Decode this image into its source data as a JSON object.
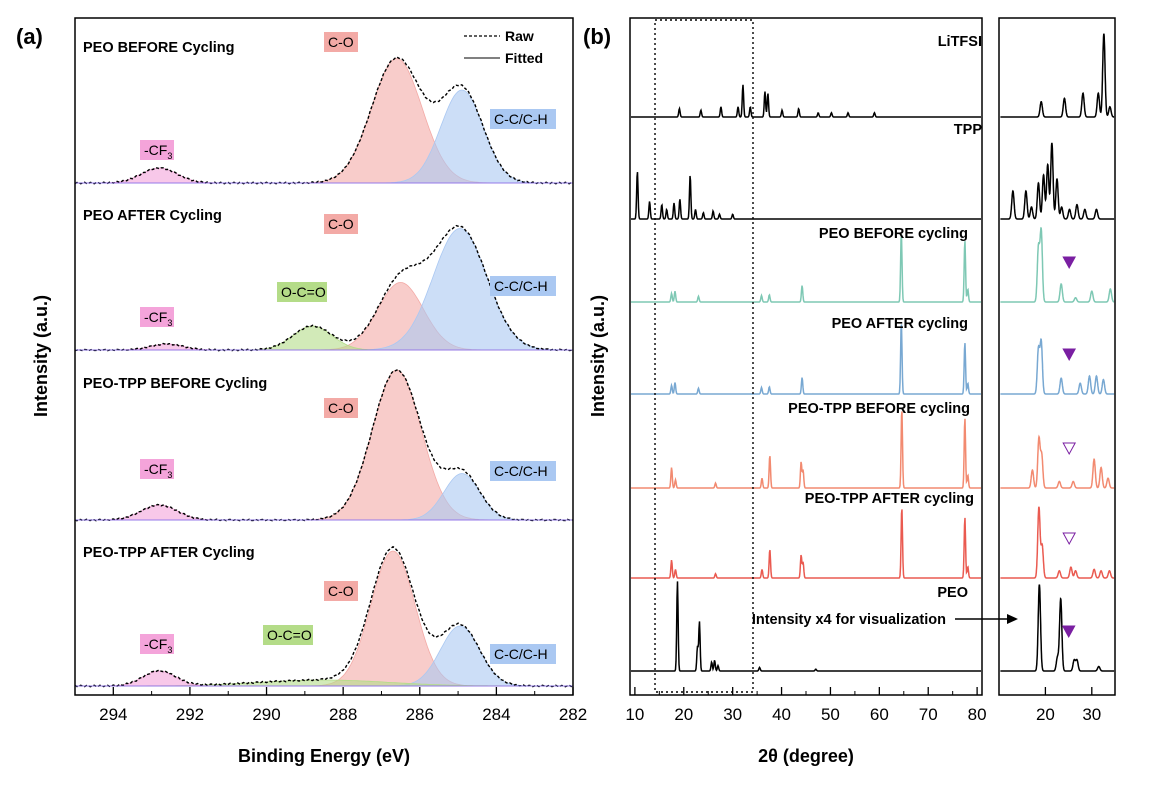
{
  "panels": {
    "a": "(a)",
    "b": "(b)"
  },
  "colors": {
    "co": "#f3aaa6",
    "cc": "#aac8f2",
    "cf3": "#f4a4da",
    "occ": "#b4dc88",
    "peo_before": "#7ec8b4",
    "peo_after": "#78a8d2",
    "tpp_before": "#f28a70",
    "tpp_after": "#ea5a50",
    "marker": "#7a1fa2"
  },
  "xps": {
    "xlabel": "Binding Energy (eV)",
    "ylabel": "Intensity (a.u.)",
    "xlim": [
      295,
      282
    ],
    "xticks": [
      294,
      292,
      290,
      288,
      286,
      284,
      282
    ],
    "legend": {
      "raw": "Raw",
      "fitted": "Fitted"
    },
    "chart_data": {
      "type": "line",
      "x_reversed": true,
      "peak_labels": {
        "co": "C-O",
        "cc": "C-C/C-H",
        "cf3": "-CF3",
        "cf3_main": "-CF",
        "cf3_sub": "3",
        "occ": "O-C=O"
      },
      "subplots": [
        {
          "title": "PEO BEFORE Cycling",
          "peaks": [
            {
              "name": "C-O",
              "center": 286.6,
              "height": 0.83,
              "fwhm": 1.55
            },
            {
              "name": "C-C/C-H",
              "center": 284.9,
              "height": 0.62,
              "fwhm": 1.3
            },
            {
              "name": "-CF3",
              "center": 292.8,
              "height": 0.1,
              "fwhm": 1.1
            }
          ]
        },
        {
          "title": "PEO AFTER Cycling",
          "peaks": [
            {
              "name": "C-O",
              "center": 286.5,
              "height": 0.45,
              "fwhm": 1.4
            },
            {
              "name": "C-C/C-H",
              "center": 284.95,
              "height": 0.81,
              "fwhm": 1.65
            },
            {
              "name": "O-C=O",
              "center": 288.8,
              "height": 0.16,
              "fwhm": 1.2
            },
            {
              "name": "-CF3",
              "center": 292.6,
              "height": 0.04,
              "fwhm": 1.0
            }
          ]
        },
        {
          "title": "PEO-TPP BEFORE Cycling",
          "peaks": [
            {
              "name": "C-O",
              "center": 286.6,
              "height": 1.0,
              "fwhm": 1.5
            },
            {
              "name": "C-C/C-H",
              "center": 284.9,
              "height": 0.31,
              "fwhm": 1.1
            },
            {
              "name": "-CF3",
              "center": 292.8,
              "height": 0.1,
              "fwhm": 1.1
            }
          ]
        },
        {
          "title": "PEO-TPP AFTER Cycling",
          "peaks": [
            {
              "name": "C-O",
              "center": 286.7,
              "height": 0.9,
              "fwhm": 1.35
            },
            {
              "name": "C-C/C-H",
              "center": 284.95,
              "height": 0.4,
              "fwhm": 1.2
            },
            {
              "name": "O-C=O",
              "center": 288.5,
              "height": 0.04,
              "fwhm": 4.0
            },
            {
              "name": "-CF3",
              "center": 292.8,
              "height": 0.1,
              "fwhm": 1.0
            }
          ]
        }
      ]
    }
  },
  "xrd": {
    "xlabel": "2θ (degree)",
    "ylabel": "Intensity (a.u.)",
    "xlim": [
      9,
      81
    ],
    "xticks": [
      10,
      20,
      30,
      40,
      50,
      60,
      70,
      80
    ],
    "inset_xlim": [
      10,
      35
    ],
    "inset_xticks": [
      20,
      30
    ],
    "annotation": "Intensity x4 for visualization",
    "chart_data": {
      "type": "line",
      "traces": [
        {
          "name": "LiTFSI",
          "color": "#000000",
          "peaks": [
            [
              19.1,
              0.1
            ],
            [
              23.5,
              0.08
            ],
            [
              27.6,
              0.12
            ],
            [
              31.1,
              0.12
            ],
            [
              32.1,
              0.38
            ],
            [
              33.6,
              0.12
            ],
            [
              36.6,
              0.3
            ],
            [
              37.2,
              0.28
            ],
            [
              40.1,
              0.08
            ],
            [
              43.5,
              0.1
            ],
            [
              47.5,
              0.05
            ],
            [
              50.2,
              0.05
            ],
            [
              53.6,
              0.05
            ],
            [
              59,
              0.05
            ]
          ],
          "inset_peaks": [
            [
              19.1,
              0.18
            ],
            [
              24.1,
              0.22
            ],
            [
              28.1,
              0.28
            ],
            [
              31.4,
              0.28
            ],
            [
              32.6,
              0.98
            ],
            [
              33.9,
              0.12
            ]
          ]
        },
        {
          "name": "TPP",
          "color": "#000000",
          "peaks": [
            [
              10.5,
              0.6
            ],
            [
              13,
              0.22
            ],
            [
              15.5,
              0.18
            ],
            [
              16.5,
              0.12
            ],
            [
              18,
              0.2
            ],
            [
              19.2,
              0.25
            ],
            [
              21.3,
              0.55
            ],
            [
              22.4,
              0.12
            ],
            [
              24,
              0.08
            ],
            [
              26,
              0.1
            ],
            [
              27.3,
              0.06
            ],
            [
              30,
              0.06
            ]
          ],
          "inset_peaks": [
            [
              13,
              0.35
            ],
            [
              15.8,
              0.35
            ],
            [
              17,
              0.15
            ],
            [
              18.5,
              0.45
            ],
            [
              19.6,
              0.55
            ],
            [
              20.5,
              0.68
            ],
            [
              21.4,
              0.95
            ],
            [
              22.5,
              0.5
            ],
            [
              23.5,
              0.15
            ],
            [
              25.2,
              0.12
            ],
            [
              26.8,
              0.18
            ],
            [
              28.5,
              0.12
            ],
            [
              31,
              0.12
            ]
          ]
        },
        {
          "name": "PEO BEFORE cycling",
          "color": "#7ec8b4",
          "peaks": [
            [
              17.5,
              0.12
            ],
            [
              18.2,
              0.15
            ],
            [
              23,
              0.08
            ],
            [
              35.9,
              0.09
            ],
            [
              37.5,
              0.1
            ],
            [
              44.2,
              0.23
            ],
            [
              64.5,
              0.97
            ],
            [
              77.5,
              0.86
            ],
            [
              78.1,
              0.18
            ]
          ],
          "inset_peaks": [
            [
              18.5,
              0.75
            ],
            [
              19.1,
              0.98
            ],
            [
              23.4,
              0.25
            ],
            [
              26.5,
              0.06
            ],
            [
              30,
              0.15
            ],
            [
              34,
              0.18
            ]
          ],
          "marker": {
            "x": 23.4,
            "filled": true
          }
        },
        {
          "name": "PEO AFTER cycling",
          "color": "#78a8d2",
          "peaks": [
            [
              17.5,
              0.12
            ],
            [
              18.2,
              0.16
            ],
            [
              23,
              0.08
            ],
            [
              35.9,
              0.09
            ],
            [
              37.5,
              0.1
            ],
            [
              44.2,
              0.23
            ],
            [
              64.5,
              1.0
            ],
            [
              77.5,
              0.72
            ],
            [
              78.1,
              0.15
            ]
          ],
          "inset_peaks": [
            [
              18.5,
              0.62
            ],
            [
              19.1,
              0.72
            ],
            [
              23.4,
              0.22
            ],
            [
              27.5,
              0.15
            ],
            [
              29.5,
              0.25
            ],
            [
              31,
              0.25
            ],
            [
              32.5,
              0.2
            ]
          ],
          "marker": {
            "x": 23.4,
            "filled": true
          }
        },
        {
          "name": "PEO-TPP BEFORE cycling",
          "color": "#f28a70",
          "peaks": [
            [
              17.5,
              0.25
            ],
            [
              18.3,
              0.1
            ],
            [
              26.5,
              0.06
            ],
            [
              36,
              0.12
            ],
            [
              37.6,
              0.4
            ],
            [
              44,
              0.32
            ],
            [
              44.4,
              0.22
            ],
            [
              64.6,
              0.97
            ],
            [
              77.5,
              0.86
            ],
            [
              78.1,
              0.16
            ]
          ],
          "inset_peaks": [
            [
              17.2,
              0.22
            ],
            [
              18.6,
              0.6
            ],
            [
              19.2,
              0.4
            ],
            [
              23,
              0.08
            ],
            [
              26,
              0.08
            ],
            [
              30.5,
              0.35
            ],
            [
              32,
              0.25
            ],
            [
              33.5,
              0.12
            ]
          ],
          "marker": {
            "x": 23.4,
            "filled": false
          }
        },
        {
          "name": "PEO-TPP AFTER cycling",
          "color": "#ea5a50",
          "peaks": [
            [
              17.5,
              0.25
            ],
            [
              18.3,
              0.12
            ],
            [
              26.5,
              0.06
            ],
            [
              36,
              0.12
            ],
            [
              37.6,
              0.4
            ],
            [
              44,
              0.32
            ],
            [
              44.4,
              0.22
            ],
            [
              64.6,
              0.99
            ],
            [
              77.5,
              0.85
            ],
            [
              78.1,
              0.16
            ]
          ],
          "inset_peaks": [
            [
              18.6,
              0.98
            ],
            [
              19.3,
              0.45
            ],
            [
              23,
              0.1
            ],
            [
              25.5,
              0.15
            ],
            [
              26.5,
              0.1
            ],
            [
              30.5,
              0.12
            ],
            [
              32,
              0.1
            ],
            [
              33.8,
              0.1
            ]
          ],
          "marker": {
            "x": 23.4,
            "filled": false
          }
        },
        {
          "name": "PEO",
          "color": "#000000",
          "peaks": [
            [
              18.7,
              1.0
            ],
            [
              22.8,
              0.27
            ],
            [
              23.2,
              0.55
            ],
            [
              25.7,
              0.1
            ],
            [
              26.3,
              0.12
            ],
            [
              27,
              0.06
            ],
            [
              35.5,
              0.04
            ],
            [
              47,
              0.02
            ]
          ],
          "inset_peaks": [
            [
              18.7,
              0.96
            ],
            [
              22.6,
              0.15
            ],
            [
              23.3,
              0.8
            ],
            [
              26.2,
              0.12
            ],
            [
              26.8,
              0.12
            ],
            [
              31.5,
              0.05
            ]
          ],
          "marker": {
            "x": 23.3,
            "filled": true
          }
        }
      ]
    }
  }
}
